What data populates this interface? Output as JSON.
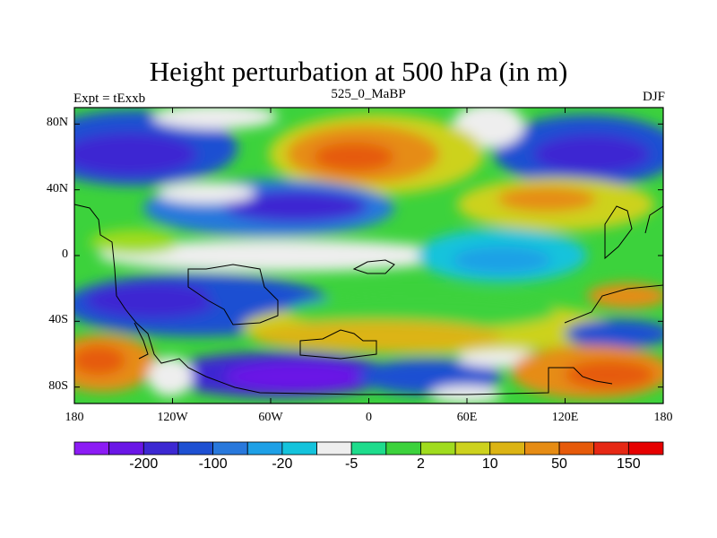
{
  "title": "Height perturbation at 500 hPa (in m)",
  "left_string": "Expt = tExxb",
  "center_string": "525_0_MaBP",
  "right_string": "DJF",
  "map": {
    "projection": "cylindrical-equidistant",
    "lon_range": [
      -180,
      180
    ],
    "lat_range": [
      -90,
      90
    ],
    "lat_ticks": [
      {
        "lat": 80,
        "label": "80N"
      },
      {
        "lat": 40,
        "label": "40N"
      },
      {
        "lat": 0,
        "label": "0"
      },
      {
        "lat": -40,
        "label": "40S"
      },
      {
        "lat": -80,
        "label": "80S"
      }
    ],
    "lon_ticks": [
      {
        "lon": -180,
        "label": "180"
      },
      {
        "lon": -120,
        "label": "120W"
      },
      {
        "lon": -60,
        "label": "60W"
      },
      {
        "lon": 0,
        "label": "0"
      },
      {
        "lon": 60,
        "label": "60E"
      },
      {
        "lon": 120,
        "label": "120E"
      },
      {
        "lon": 180,
        "label": "180"
      }
    ]
  },
  "colorbar": {
    "colors": [
      "#8c1cf5",
      "#6a16e6",
      "#3c28d2",
      "#1e50d2",
      "#2878dc",
      "#1ea0e6",
      "#14c3dc",
      "#eeeeee",
      "#1edc8c",
      "#3cd23c",
      "#a0dc1e",
      "#cdd21e",
      "#dcb414",
      "#e68c14",
      "#e65a0a",
      "#e62814",
      "#e60000"
    ],
    "labels": [
      {
        "text": "-200",
        "boundary": 2
      },
      {
        "text": "-100",
        "boundary": 4
      },
      {
        "text": "-20",
        "boundary": 6
      },
      {
        "text": "-5",
        "boundary": 8
      },
      {
        "text": "2",
        "boundary": 10
      },
      {
        "text": "10",
        "boundary": 12
      },
      {
        "text": "50",
        "boundary": 14
      },
      {
        "text": "150",
        "boundary": 16
      }
    ]
  }
}
